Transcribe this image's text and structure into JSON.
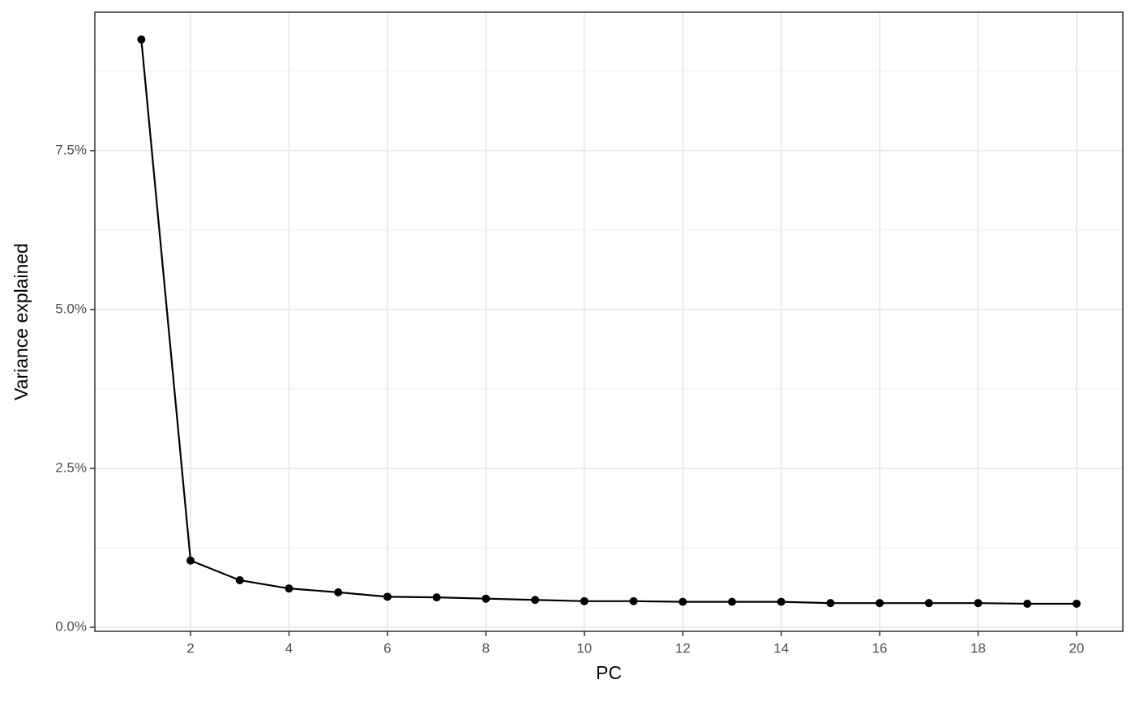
{
  "chart_data": {
    "type": "line",
    "x_label": "PC",
    "y_label": "Variance explained",
    "x": [
      1,
      2,
      3,
      4,
      5,
      6,
      7,
      8,
      9,
      10,
      11,
      12,
      13,
      14,
      15,
      16,
      17,
      18,
      19,
      20
    ],
    "series": [
      {
        "color": "#000000",
        "values": [
          9.25,
          1.05,
          0.74,
          0.61,
          0.55,
          0.48,
          0.47,
          0.45,
          0.43,
          0.41,
          0.41,
          0.4,
          0.4,
          0.4,
          0.38,
          0.38,
          0.38,
          0.38,
          0.37,
          0.37
        ]
      }
    ],
    "xlim": [
      0.056,
      20.94
    ],
    "xticks": [
      2,
      4,
      6,
      8,
      10,
      12,
      14,
      16,
      18,
      20
    ],
    "ylim": [
      -0.064,
      9.68
    ],
    "yticks": [
      {
        "value": 0,
        "label": "0.0%"
      },
      {
        "value": 2.5,
        "label": "2.5%"
      },
      {
        "value": 5,
        "label": "5.0%"
      },
      {
        "value": 7.5,
        "label": "7.5%"
      }
    ],
    "y_minor_ticks": [
      1.25,
      3.75,
      6.25,
      8.75
    ],
    "grid": true
  }
}
